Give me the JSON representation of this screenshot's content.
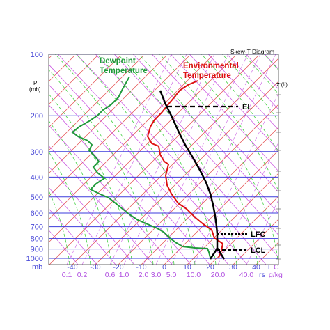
{
  "title": "Skew-T Diagram",
  "pressure_axis": {
    "label_line1": "P",
    "label_line2": "(mb)",
    "unit_label": "mb",
    "levels": [
      100,
      200,
      300,
      400,
      500,
      600,
      700,
      800,
      900,
      1000
    ]
  },
  "height_axis_label": "Z (ft)",
  "temperature_axis": {
    "ticks": [
      -40,
      -30,
      -20,
      -10,
      0,
      10,
      20,
      30,
      40
    ],
    "unit_label": "T",
    "unit_suffix": "C"
  },
  "mixing_ratio_axis": {
    "ticks": [
      "0.1",
      "0.2",
      "0.6",
      "1.0",
      "2.0",
      "3.0",
      "5.0",
      "10.0",
      "20.0",
      "40.0"
    ],
    "label": "rs",
    "unit": "g/kg"
  },
  "labels": {
    "dewpoint_line1": "Dewpoint",
    "dewpoint_line2": "Temperature",
    "environment_line1": "Environmental",
    "environment_line2": "Temperature",
    "el": "EL",
    "lfc": "LFC",
    "lcl": "LCL"
  },
  "colors": {
    "isobar": "#3b3bdc",
    "isotherm": "#e34d4d",
    "dry_adiabat": "#c74ce0",
    "moist_adiabat": "#40d040",
    "mixing_ratio": "#d070e6",
    "environment": "#dd1111",
    "dewpoint": "#1f9a3a",
    "parcel": "#000000",
    "axis_text_blue": "#4b4bd8",
    "axis_text_magenta": "#b04ee0"
  }
}
